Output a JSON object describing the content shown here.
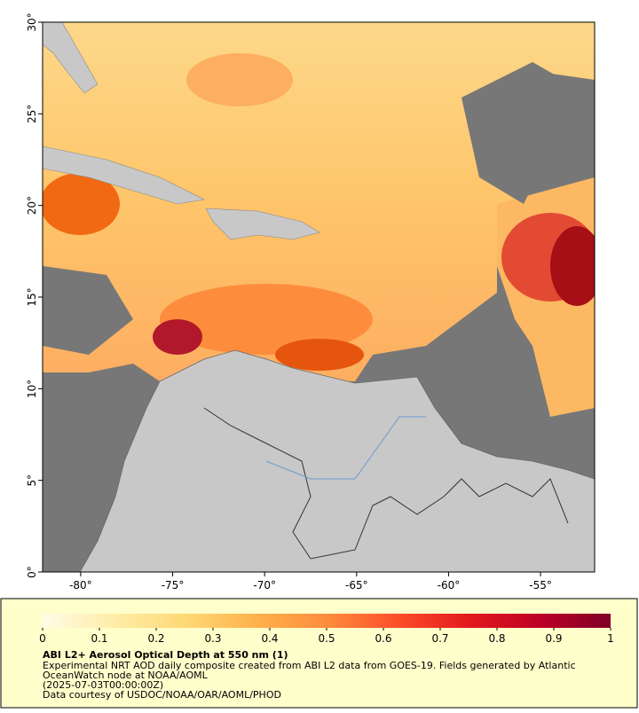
{
  "map": {
    "lon_range": [
      -82.07,
      -52.06
    ],
    "lat_range": [
      0,
      30
    ],
    "lon_ticks": [
      {
        "value": -80,
        "label": "-80°"
      },
      {
        "value": -75,
        "label": "-75°"
      },
      {
        "value": -70,
        "label": "-70°"
      },
      {
        "value": -65,
        "label": "-65°"
      },
      {
        "value": -60,
        "label": "-60°"
      },
      {
        "value": -55,
        "label": "-55°"
      }
    ],
    "lat_ticks": [
      {
        "value": 0,
        "label": "0°"
      },
      {
        "value": 5,
        "label": "5°"
      },
      {
        "value": 10,
        "label": "10°"
      },
      {
        "value": 15,
        "label": "15°"
      },
      {
        "value": 20,
        "label": "20°"
      },
      {
        "value": 25,
        "label": "25°"
      },
      {
        "value": 30,
        "label": "30°"
      }
    ]
  },
  "colorbar": {
    "range": [
      0,
      1
    ],
    "ticks": [
      0,
      0.1,
      0.2,
      0.3,
      0.4,
      0.5,
      0.6,
      0.7,
      0.8,
      0.9,
      1
    ],
    "colors": [
      "#fffbe6",
      "#ffeda8",
      "#fed976",
      "#feb24c",
      "#fd8d3c",
      "#fc4e2a",
      "#e31a1c",
      "#bd0026",
      "#800026"
    ]
  },
  "info": {
    "title": "ABI L2+ Aerosol Optical Depth at 550 nm (1)",
    "line1": "Experimental NRT AOD daily composite created from ABI L2 data from GOES-19. Fields generated by Atlantic",
    "line2": "OceanWatch node at NOAA/AOML",
    "time": "(2025-07-03T00:00:00Z)",
    "credit": "Data courtesy of USDOC/NOAA/OAR/AOML/PHOD"
  }
}
